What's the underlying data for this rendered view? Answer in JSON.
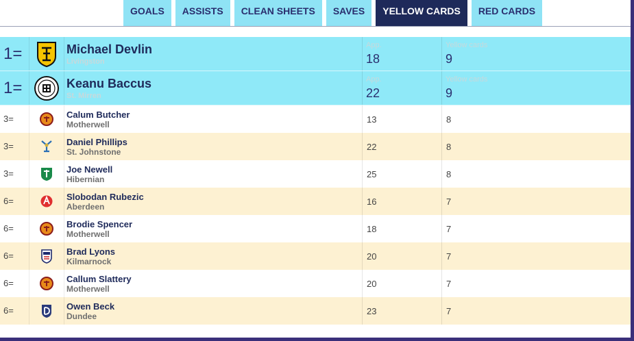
{
  "tabs": [
    {
      "label": "GOALS",
      "active": false
    },
    {
      "label": "ASSISTS",
      "active": false
    },
    {
      "label": "CLEAN SHEETS",
      "active": false
    },
    {
      "label": "SAVES",
      "active": false
    },
    {
      "label": "YELLOW CARDS",
      "active": true
    },
    {
      "label": "RED CARDS",
      "active": false
    }
  ],
  "columns": {
    "apps": "App.",
    "yellow": "Yellow cards"
  },
  "colors": {
    "accent_cyan": "#8fe9f8",
    "navy": "#1e2a5a",
    "cream": "#fdf1d2",
    "frame_purple": "#3a2f7a"
  },
  "rows": [
    {
      "rank": "1=",
      "name": "Michael Devlin",
      "club": "Livingston",
      "apps": "18",
      "yellow": "9",
      "crest": "livingston-crest-icon"
    },
    {
      "rank": "1=",
      "name": "Keanu Baccus",
      "club": "St. Mirren",
      "apps": "22",
      "yellow": "9",
      "crest": "st-mirren-crest-icon"
    },
    {
      "rank": "3=",
      "name": "Calum Butcher",
      "club": "Motherwell",
      "apps": "13",
      "yellow": "8",
      "crest": "motherwell-crest-icon"
    },
    {
      "rank": "3=",
      "name": "Daniel Phillips",
      "club": "St. Johnstone",
      "apps": "22",
      "yellow": "8",
      "crest": "st-johnstone-crest-icon"
    },
    {
      "rank": "3=",
      "name": "Joe Newell",
      "club": "Hibernian",
      "apps": "25",
      "yellow": "8",
      "crest": "hibernian-crest-icon"
    },
    {
      "rank": "6=",
      "name": "Slobodan Rubezic",
      "club": "Aberdeen",
      "apps": "16",
      "yellow": "7",
      "crest": "aberdeen-crest-icon"
    },
    {
      "rank": "6=",
      "name": "Brodie Spencer",
      "club": "Motherwell",
      "apps": "18",
      "yellow": "7",
      "crest": "motherwell-crest-icon"
    },
    {
      "rank": "6=",
      "name": "Brad Lyons",
      "club": "Kilmarnock",
      "apps": "20",
      "yellow": "7",
      "crest": "kilmarnock-crest-icon"
    },
    {
      "rank": "6=",
      "name": "Callum Slattery",
      "club": "Motherwell",
      "apps": "20",
      "yellow": "7",
      "crest": "motherwell-crest-icon"
    },
    {
      "rank": "6=",
      "name": "Owen Beck",
      "club": "Dundee",
      "apps": "23",
      "yellow": "7",
      "crest": "dundee-crest-icon"
    }
  ]
}
